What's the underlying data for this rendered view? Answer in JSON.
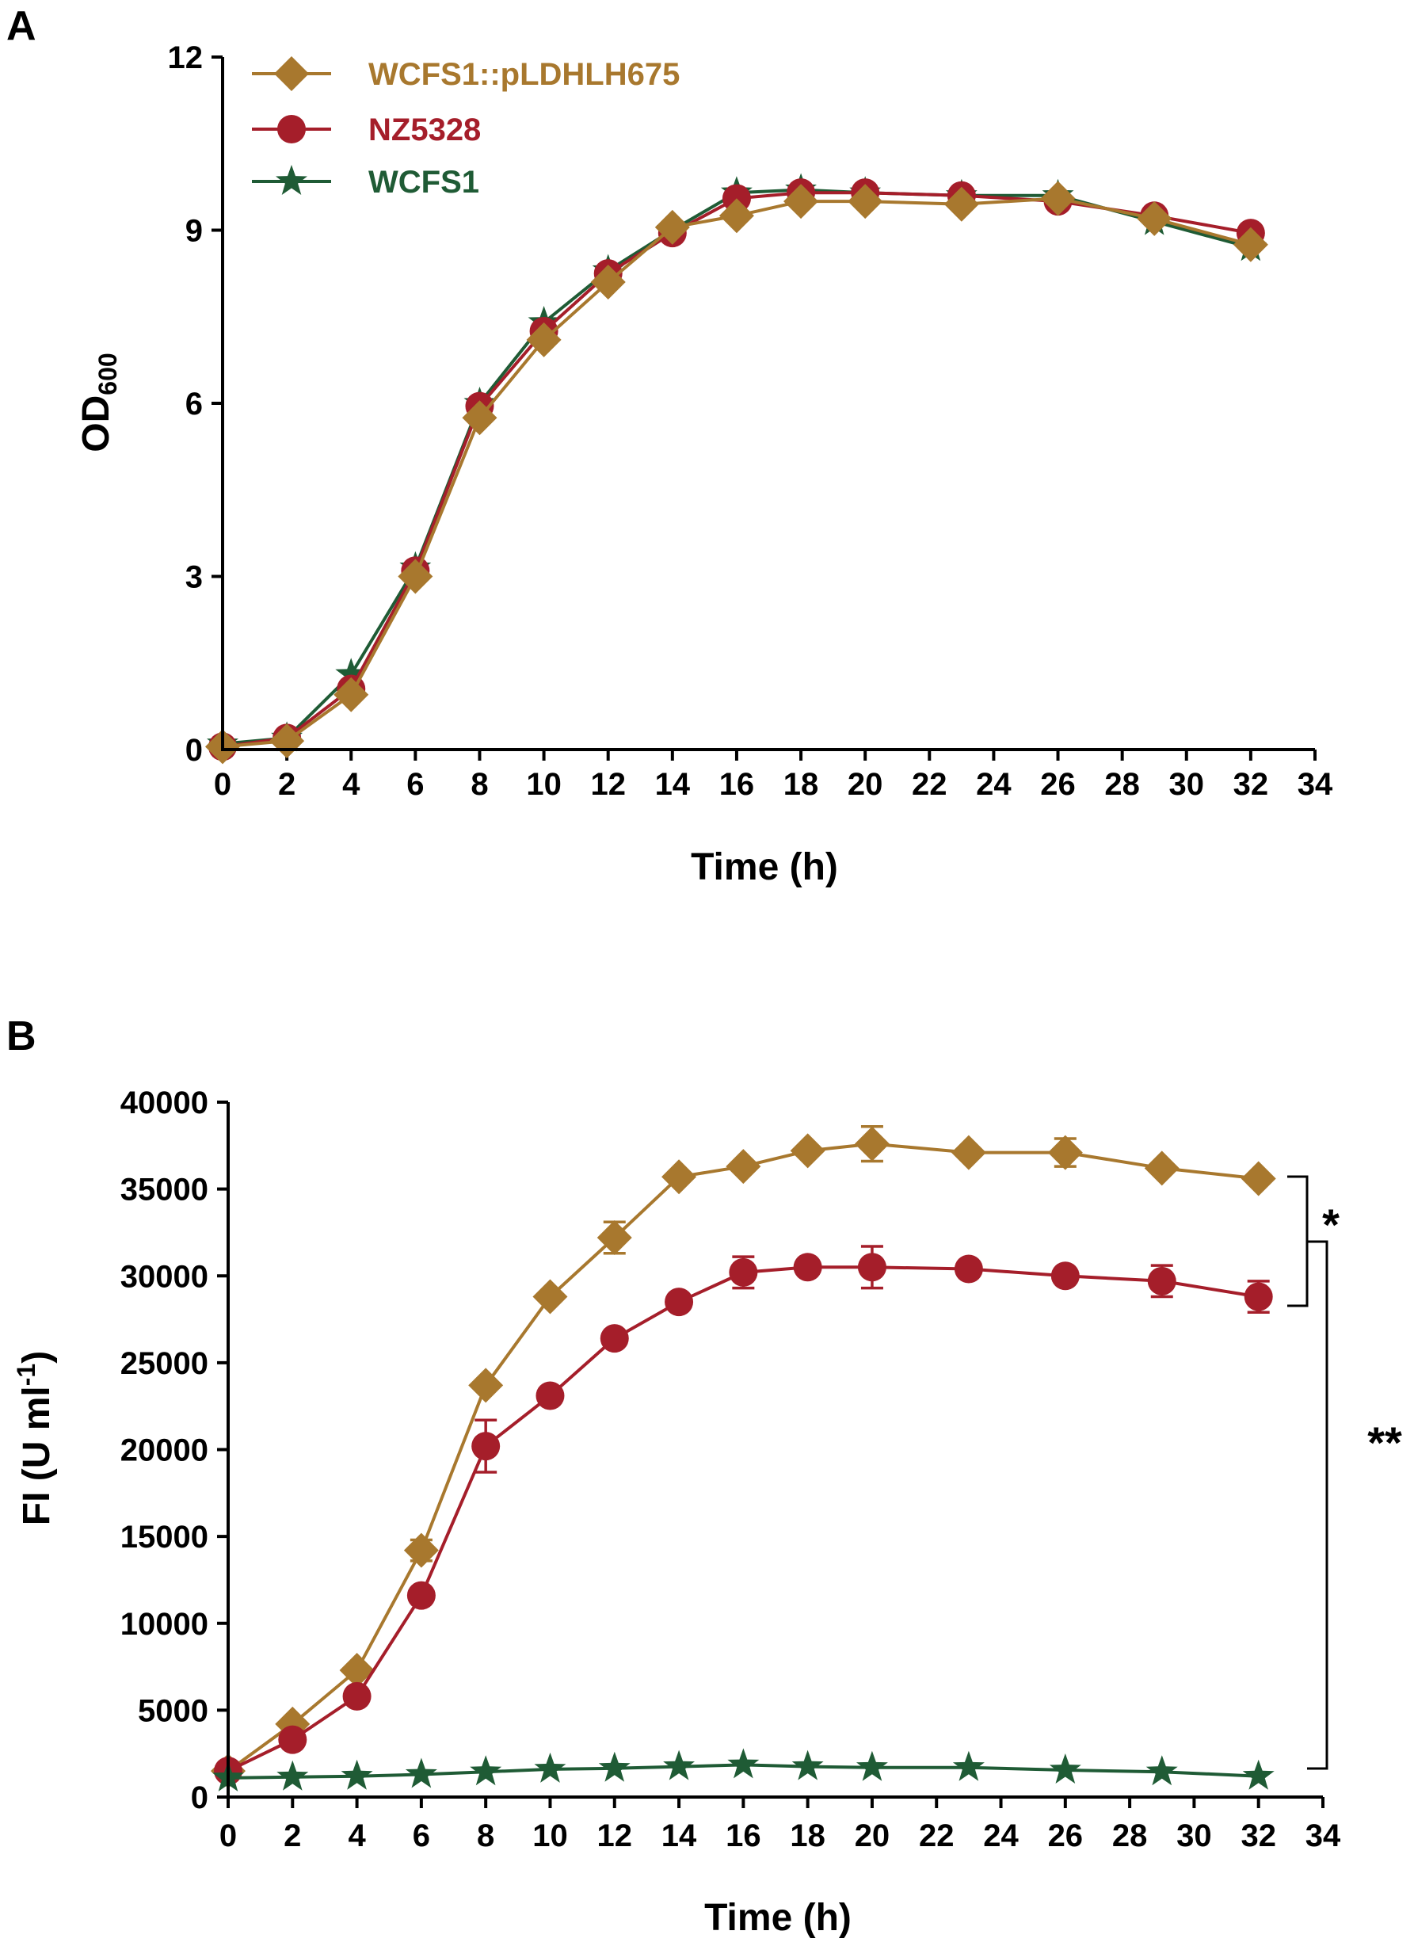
{
  "colors": {
    "wcfs1_pldhlh675": "#a8782e",
    "nz5328": "#a51e2a",
    "wcfs1": "#1f5b35",
    "axis": "#000000"
  },
  "legend": {
    "items": [
      {
        "label": "WCFS1::pLDHLH675",
        "marker": "diamond-icon",
        "color": "#a8782e"
      },
      {
        "label": "NZ5328",
        "marker": "circle-icon",
        "color": "#a51e2a"
      },
      {
        "label": "WCFS1",
        "marker": "star-icon",
        "color": "#1f5b35"
      }
    ]
  },
  "chart_data": [
    {
      "panel": "A",
      "type": "line",
      "title": "",
      "xlabel": "Time (h)",
      "ylabel_main": "OD",
      "ylabel_sub": "600",
      "xlim": [
        0,
        34
      ],
      "ylim": [
        0,
        12
      ],
      "xticks": [
        "0",
        "2",
        "4",
        "6",
        "8",
        "10",
        "12",
        "14",
        "16",
        "18",
        "20",
        "22",
        "24",
        "26",
        "28",
        "30",
        "32",
        "34"
      ],
      "yticks": [
        "0",
        "3",
        "6",
        "9",
        "12"
      ],
      "series": [
        {
          "name": "WCFS1",
          "marker": "star",
          "color": "#1f5b35",
          "x": [
            0,
            2,
            4,
            6,
            8,
            10,
            12,
            14,
            16,
            18,
            20,
            23,
            26,
            29,
            32
          ],
          "y": [
            0.1,
            0.2,
            1.3,
            3.15,
            6.0,
            7.4,
            8.3,
            9.0,
            9.65,
            9.7,
            9.65,
            9.6,
            9.6,
            9.15,
            8.7
          ]
        },
        {
          "name": "NZ5328",
          "marker": "circle",
          "color": "#a51e2a",
          "x": [
            0,
            2,
            4,
            6,
            8,
            10,
            12,
            14,
            16,
            18,
            20,
            23,
            26,
            29,
            32
          ],
          "y": [
            0.05,
            0.2,
            1.05,
            3.1,
            5.95,
            7.25,
            8.25,
            8.95,
            9.55,
            9.65,
            9.65,
            9.6,
            9.5,
            9.25,
            8.95
          ]
        },
        {
          "name": "WCFS1::pLDHLH675",
          "marker": "diamond",
          "color": "#a8782e",
          "x": [
            0,
            2,
            4,
            6,
            8,
            10,
            12,
            14,
            16,
            18,
            20,
            23,
            26,
            29,
            32
          ],
          "y": [
            0.05,
            0.15,
            0.95,
            3.0,
            5.75,
            7.1,
            8.1,
            9.05,
            9.25,
            9.5,
            9.5,
            9.45,
            9.55,
            9.2,
            8.75
          ]
        }
      ]
    },
    {
      "panel": "B",
      "type": "line",
      "title": "",
      "xlabel": "Time (h)",
      "ylabel_main": "FI (U ml",
      "ylabel_sup": "-1",
      "ylabel_end": ")",
      "xlim": [
        0,
        34
      ],
      "ylim": [
        0,
        40000
      ],
      "xticks": [
        "0",
        "2",
        "4",
        "6",
        "8",
        "10",
        "12",
        "14",
        "16",
        "18",
        "20",
        "22",
        "24",
        "26",
        "28",
        "30",
        "32",
        "34"
      ],
      "yticks": [
        "0",
        "5000",
        "10000",
        "15000",
        "20000",
        "25000",
        "30000",
        "35000",
        "40000"
      ],
      "series": [
        {
          "name": "WCFS1::pLDHLH675",
          "marker": "diamond",
          "color": "#a8782e",
          "x": [
            0,
            2,
            4,
            6,
            8,
            10,
            12,
            14,
            16,
            18,
            20,
            23,
            26,
            29,
            32
          ],
          "y": [
            1500,
            4200,
            7300,
            14200,
            23700,
            28800,
            32200,
            35700,
            36300,
            37200,
            37600,
            37100,
            37100,
            36200,
            35600
          ],
          "err": [
            0,
            0,
            0,
            600,
            0,
            0,
            900,
            0,
            0,
            0,
            1000,
            0,
            800,
            0,
            0
          ]
        },
        {
          "name": "NZ5328",
          "marker": "circle",
          "color": "#a51e2a",
          "x": [
            0,
            2,
            4,
            6,
            8,
            10,
            12,
            14,
            16,
            18,
            20,
            23,
            26,
            29,
            32
          ],
          "y": [
            1500,
            3300,
            5800,
            11600,
            20200,
            23100,
            26400,
            28500,
            30200,
            30500,
            30500,
            30400,
            30000,
            29700,
            28800
          ],
          "err": [
            0,
            0,
            0,
            0,
            1500,
            0,
            0,
            0,
            900,
            0,
            1200,
            0,
            0,
            900,
            900
          ]
        },
        {
          "name": "WCFS1",
          "marker": "star",
          "color": "#1f5b35",
          "x": [
            0,
            2,
            4,
            6,
            8,
            10,
            12,
            14,
            16,
            18,
            20,
            23,
            26,
            29,
            32
          ],
          "y": [
            1100,
            1150,
            1200,
            1300,
            1450,
            1600,
            1650,
            1750,
            1850,
            1750,
            1700,
            1700,
            1550,
            1450,
            1200
          ],
          "err": [
            0,
            0,
            0,
            0,
            0,
            0,
            0,
            0,
            0,
            0,
            0,
            0,
            0,
            0,
            0
          ]
        }
      ],
      "annotations": {
        "significance_upper": "*",
        "significance_lower": "**"
      }
    }
  ]
}
